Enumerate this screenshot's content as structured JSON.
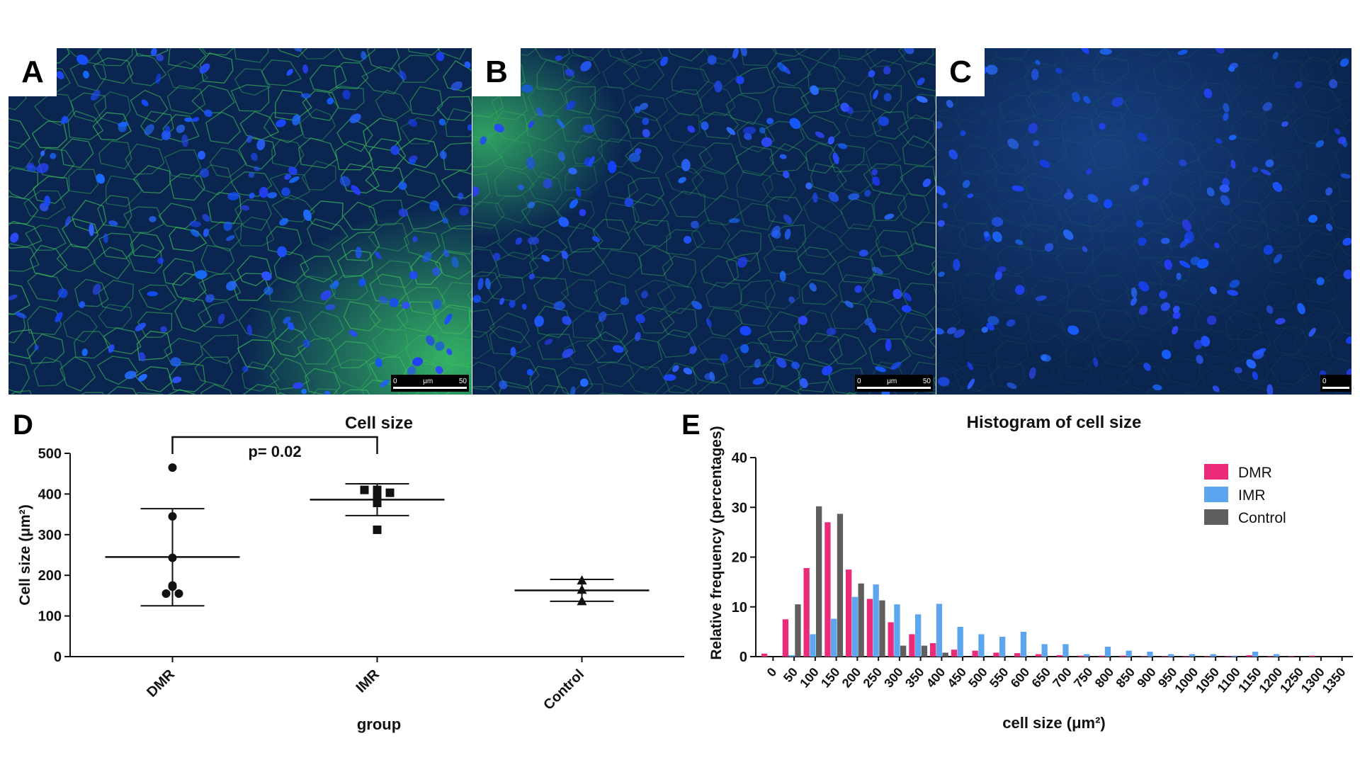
{
  "panels": [
    {
      "letter": "A",
      "scale": {
        "start": "0",
        "unit": "μm",
        "end": "50"
      }
    },
    {
      "letter": "B",
      "scale": {
        "start": "0",
        "unit": "μm",
        "end": "50"
      }
    },
    {
      "letter": "C",
      "scale": {
        "start": "0",
        "unit": "",
        "end": ""
      }
    }
  ],
  "panel_letters": {
    "d": "D",
    "e": "E"
  },
  "colors": {
    "dmr": "#ec2a7a",
    "imr": "#5ea5ef",
    "control": "#5f5f5f"
  },
  "chart_data": [
    {
      "type": "scatter",
      "title": "Cell size",
      "xlabel": "group",
      "ylabel": "Cell size (μm²)",
      "ylim": [
        0,
        500
      ],
      "yticks": [
        "0",
        "100",
        "200",
        "300",
        "400",
        "500"
      ],
      "categories": [
        "DMR",
        "IMR",
        "Control"
      ],
      "series": [
        {
          "category": "DMR",
          "marker": "circle",
          "points": [
            465,
            345,
            243,
            175,
            172,
            155,
            155
          ],
          "mean": 245,
          "sd_upper": 364,
          "sd_lower": 125
        },
        {
          "category": "IMR",
          "marker": "square",
          "points": [
            410,
            410,
            403,
            397,
            378,
            312
          ],
          "mean": 386,
          "sd_upper": 425,
          "sd_lower": 347
        },
        {
          "category": "Control",
          "marker": "triangle",
          "points": [
            188,
            165,
            137
          ],
          "mean": 163,
          "sd_upper": 190,
          "sd_lower": 136
        }
      ],
      "annotation": {
        "text": "p= 0.02",
        "from": "DMR",
        "to": "IMR",
        "y": 540
      }
    },
    {
      "type": "bar",
      "title": "Histogram of cell size",
      "xlabel": "cell size (μm²)",
      "ylabel": "Relative frequency (percentages)",
      "ylim": [
        0,
        40
      ],
      "yticks": [
        "0",
        "10",
        "20",
        "30",
        "40"
      ],
      "legend_position": "top-right",
      "categories": [
        "0",
        "50",
        "100",
        "150",
        "200",
        "250",
        "300",
        "350",
        "400",
        "450",
        "500",
        "550",
        "600",
        "650",
        "700",
        "750",
        "800",
        "850",
        "900",
        "950",
        "1000",
        "1050",
        "1100",
        "1150",
        "1200",
        "1250",
        "1300",
        "1350"
      ],
      "series": [
        {
          "name": "DMR",
          "values": [
            0.6,
            7.5,
            17.8,
            27,
            17.5,
            11.6,
            6.9,
            4.5,
            2.7,
            1.4,
            1.2,
            0.8,
            0.7,
            0.5,
            0.3,
            0.2,
            0.2,
            0.2,
            0.1,
            0.1,
            0.1,
            0.1,
            0.1,
            0.3,
            0.1,
            0.1,
            0.2,
            0
          ]
        },
        {
          "name": "IMR",
          "values": [
            0,
            0.3,
            4.5,
            7.6,
            12,
            14.5,
            10.5,
            8.5,
            10.6,
            6,
            4.5,
            4.0,
            5.0,
            2.5,
            2.5,
            0.5,
            2.0,
            1.2,
            1.0,
            0.5,
            0.5,
            0.5,
            0.2,
            1.0,
            0.5,
            0,
            0,
            0
          ]
        },
        {
          "name": "Control",
          "values": [
            0,
            10.5,
            30.2,
            28.7,
            14.7,
            11.3,
            2.2,
            2.2,
            0.8,
            0,
            0,
            0,
            0,
            0,
            0,
            0,
            0,
            0,
            0,
            0,
            0,
            0,
            0,
            0,
            0,
            0,
            0,
            0
          ]
        }
      ]
    }
  ]
}
